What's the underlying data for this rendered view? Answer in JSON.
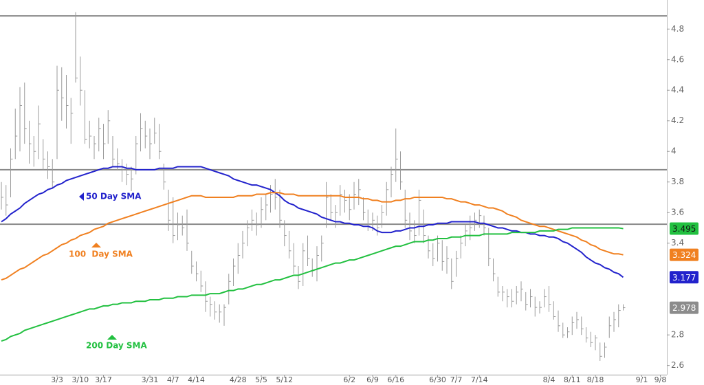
{
  "chart_data": {
    "type": "ohlc",
    "categories": [
      null,
      null,
      null,
      null,
      null,
      null,
      null,
      null,
      null,
      null,
      null,
      null,
      "3/3",
      null,
      null,
      null,
      null,
      "3/10",
      null,
      null,
      null,
      null,
      "3/17",
      null,
      null,
      null,
      null,
      null,
      null,
      null,
      null,
      null,
      "3/31",
      null,
      null,
      null,
      null,
      "4/7",
      null,
      null,
      null,
      null,
      "4/14",
      null,
      null,
      null,
      null,
      null,
      null,
      null,
      null,
      "4/28",
      null,
      null,
      null,
      null,
      "5/5",
      null,
      null,
      null,
      null,
      "5/12",
      null,
      null,
      null,
      null,
      null,
      null,
      null,
      null,
      null,
      null,
      null,
      null,
      null,
      "6/2",
      null,
      null,
      null,
      null,
      "6/9",
      null,
      null,
      null,
      null,
      "6/16",
      null,
      null,
      null,
      null,
      null,
      null,
      null,
      null,
      "6/30",
      null,
      null,
      null,
      "7/7",
      null,
      null,
      null,
      null,
      "7/14",
      null,
      null,
      null,
      null,
      null,
      null,
      null,
      null,
      null,
      null,
      null,
      null,
      null,
      null,
      "8/4",
      null,
      null,
      null,
      null,
      "8/11",
      null,
      null,
      null,
      null,
      "8/18",
      null,
      null,
      null,
      null,
      null,
      null,
      null,
      null,
      null,
      "9/1",
      null,
      null,
      null,
      "9/8"
    ],
    "ohlc": {
      "color": "#9a9a9a",
      "label_color": "#8c8c8c",
      "high": [
        3.8,
        3.78,
        4.02,
        4.28,
        4.42,
        4.45,
        4.2,
        4.1,
        4.3,
        4.08,
        4.0,
        3.95,
        4.56,
        4.55,
        4.5,
        4.35,
        4.91,
        4.62,
        4.4,
        4.2,
        4.1,
        4.22,
        4.18,
        4.27,
        4.1,
        4.02,
        3.95,
        3.92,
        3.9,
        4.1,
        4.25,
        4.2,
        4.15,
        4.22,
        4.18,
        3.92,
        3.75,
        3.7,
        3.6,
        3.58,
        3.62,
        3.35,
        3.28,
        3.22,
        3.15,
        3.05,
        3.02,
        3.0,
        3.0,
        3.2,
        3.3,
        3.4,
        3.48,
        3.55,
        3.62,
        3.6,
        3.7,
        3.72,
        3.78,
        3.82,
        3.75,
        3.55,
        3.48,
        3.4,
        3.25,
        3.4,
        3.45,
        3.3,
        3.38,
        3.45,
        3.8,
        3.72,
        3.65,
        3.78,
        3.75,
        3.72,
        3.8,
        3.82,
        3.7,
        3.62,
        3.6,
        3.58,
        3.65,
        3.8,
        3.9,
        4.15,
        4.0,
        3.75,
        3.6,
        3.55,
        3.75,
        3.62,
        3.45,
        3.4,
        3.45,
        3.42,
        3.38,
        3.3,
        3.35,
        3.45,
        3.52,
        3.58,
        3.6,
        3.62,
        3.58,
        3.5,
        3.3,
        3.18,
        3.12,
        3.1,
        3.1,
        3.12,
        3.15,
        3.08,
        3.1,
        3.05,
        3.02,
        3.1,
        3.12,
        3.02,
        2.96,
        2.88,
        2.85,
        2.92,
        2.95,
        2.92,
        2.85,
        2.82,
        2.8,
        2.75,
        2.75,
        2.92,
        2.95,
        3.0,
        3.0,
        null,
        null,
        null,
        null,
        null,
        null,
        null,
        null
      ],
      "low": [
        3.62,
        3.58,
        3.7,
        3.95,
        4.0,
        4.05,
        3.92,
        3.9,
        3.95,
        3.88,
        3.82,
        3.76,
        3.95,
        4.2,
        4.15,
        4.05,
        4.45,
        4.3,
        4.05,
        4.02,
        3.95,
        4.0,
        3.95,
        4.05,
        3.9,
        3.88,
        3.8,
        3.78,
        3.74,
        3.85,
        4.0,
        4.02,
        3.95,
        4.05,
        3.95,
        3.75,
        3.48,
        3.4,
        3.42,
        3.45,
        3.35,
        3.2,
        3.15,
        3.08,
        2.95,
        2.92,
        2.9,
        2.88,
        2.86,
        3.0,
        3.12,
        3.2,
        3.3,
        3.38,
        3.48,
        3.45,
        3.5,
        3.55,
        3.6,
        3.62,
        3.5,
        3.38,
        3.3,
        3.2,
        3.1,
        3.12,
        3.25,
        3.18,
        3.15,
        3.28,
        3.5,
        3.55,
        3.5,
        3.58,
        3.6,
        3.55,
        3.62,
        3.65,
        3.55,
        3.48,
        3.48,
        3.45,
        3.5,
        3.58,
        3.7,
        3.8,
        3.75,
        3.5,
        3.42,
        3.4,
        3.45,
        3.4,
        3.3,
        3.25,
        3.28,
        3.22,
        3.2,
        3.1,
        3.18,
        3.3,
        3.38,
        3.42,
        3.48,
        3.5,
        3.45,
        3.25,
        3.15,
        3.05,
        3.02,
        2.98,
        2.98,
        3.0,
        3.02,
        2.96,
        2.98,
        2.92,
        2.94,
        2.98,
        2.95,
        2.9,
        2.82,
        2.78,
        2.78,
        2.8,
        2.84,
        2.8,
        2.75,
        2.72,
        2.7,
        2.63,
        2.65,
        2.78,
        2.82,
        2.85,
        2.96,
        null,
        null,
        null,
        null,
        null,
        null,
        null,
        null
      ],
      "close": [
        3.7,
        3.65,
        3.95,
        4.1,
        4.3,
        4.15,
        4.05,
        4.0,
        4.18,
        3.95,
        3.9,
        3.8,
        4.4,
        4.35,
        4.3,
        4.25,
        4.48,
        4.4,
        4.08,
        4.1,
        4.05,
        4.15,
        4.05,
        4.2,
        3.95,
        3.92,
        3.88,
        3.85,
        3.82,
        4.05,
        4.15,
        4.1,
        4.05,
        4.12,
        4.0,
        3.8,
        3.55,
        3.45,
        3.52,
        3.5,
        3.4,
        3.25,
        3.2,
        3.12,
        3.02,
        3.0,
        2.95,
        2.95,
        2.98,
        3.15,
        3.25,
        3.32,
        3.4,
        3.5,
        3.55,
        3.52,
        3.62,
        3.65,
        3.72,
        3.7,
        3.55,
        3.45,
        3.35,
        3.25,
        3.15,
        3.35,
        3.3,
        3.22,
        3.32,
        3.4,
        3.7,
        3.6,
        3.6,
        3.72,
        3.68,
        3.62,
        3.72,
        3.75,
        3.6,
        3.52,
        3.55,
        3.5,
        3.6,
        3.75,
        3.85,
        3.95,
        3.8,
        3.55,
        3.48,
        3.45,
        3.68,
        3.45,
        3.35,
        3.3,
        3.4,
        3.28,
        3.3,
        3.15,
        3.3,
        3.4,
        3.48,
        3.5,
        3.55,
        3.58,
        3.5,
        3.3,
        3.2,
        3.08,
        3.08,
        3.05,
        3.02,
        3.08,
        3.1,
        3.0,
        3.05,
        2.98,
        2.98,
        3.05,
        3.0,
        2.92,
        2.86,
        2.8,
        2.82,
        2.88,
        2.9,
        2.84,
        2.78,
        2.75,
        2.78,
        2.66,
        2.72,
        2.86,
        2.9,
        2.96,
        2.978,
        null,
        null,
        null,
        null,
        null,
        null,
        null,
        null
      ]
    },
    "series": [
      {
        "name": "50 Day SMA",
        "color": "#2222cc",
        "values": [
          3.54,
          3.56,
          3.59,
          3.61,
          3.63,
          3.66,
          3.68,
          3.7,
          3.72,
          3.73,
          3.75,
          3.76,
          3.78,
          3.79,
          3.81,
          3.82,
          3.83,
          3.84,
          3.85,
          3.86,
          3.87,
          3.88,
          3.89,
          3.89,
          3.9,
          3.9,
          3.9,
          3.89,
          3.89,
          3.88,
          3.88,
          3.88,
          3.88,
          3.88,
          3.89,
          3.89,
          3.89,
          3.89,
          3.9,
          3.9,
          3.9,
          3.9,
          3.9,
          3.9,
          3.89,
          3.88,
          3.87,
          3.86,
          3.85,
          3.84,
          3.82,
          3.81,
          3.8,
          3.79,
          3.78,
          3.78,
          3.77,
          3.76,
          3.75,
          3.73,
          3.71,
          3.68,
          3.66,
          3.65,
          3.63,
          3.62,
          3.61,
          3.6,
          3.59,
          3.57,
          3.56,
          3.55,
          3.54,
          3.54,
          3.53,
          3.53,
          3.52,
          3.52,
          3.51,
          3.51,
          3.5,
          3.48,
          3.47,
          3.47,
          3.47,
          3.48,
          3.48,
          3.49,
          3.5,
          3.5,
          3.51,
          3.51,
          3.52,
          3.52,
          3.53,
          3.53,
          3.53,
          3.54,
          3.54,
          3.54,
          3.54,
          3.54,
          3.54,
          3.53,
          3.53,
          3.52,
          3.51,
          3.5,
          3.5,
          3.49,
          3.48,
          3.48,
          3.47,
          3.47,
          3.46,
          3.46,
          3.45,
          3.45,
          3.44,
          3.44,
          3.43,
          3.41,
          3.4,
          3.38,
          3.36,
          3.34,
          3.31,
          3.29,
          3.27,
          3.26,
          3.24,
          3.23,
          3.21,
          3.2,
          3.177,
          null,
          null,
          null,
          null,
          null,
          null,
          null,
          null
        ]
      },
      {
        "name": "100  Day SMA",
        "color": "#f08020",
        "values": [
          3.16,
          3.17,
          3.19,
          3.21,
          3.23,
          3.24,
          3.26,
          3.28,
          3.3,
          3.32,
          3.33,
          3.35,
          3.37,
          3.39,
          3.4,
          3.42,
          3.43,
          3.45,
          3.46,
          3.47,
          3.49,
          3.5,
          3.51,
          3.53,
          3.54,
          3.55,
          3.56,
          3.57,
          3.58,
          3.59,
          3.6,
          3.61,
          3.62,
          3.63,
          3.64,
          3.65,
          3.66,
          3.67,
          3.68,
          3.69,
          3.7,
          3.71,
          3.71,
          3.71,
          3.7,
          3.7,
          3.7,
          3.7,
          3.7,
          3.7,
          3.7,
          3.71,
          3.71,
          3.71,
          3.71,
          3.72,
          3.72,
          3.72,
          3.73,
          3.73,
          3.73,
          3.72,
          3.72,
          3.72,
          3.71,
          3.71,
          3.71,
          3.71,
          3.71,
          3.71,
          3.71,
          3.71,
          3.71,
          3.71,
          3.7,
          3.7,
          3.7,
          3.7,
          3.69,
          3.69,
          3.68,
          3.68,
          3.67,
          3.67,
          3.67,
          3.68,
          3.68,
          3.69,
          3.69,
          3.7,
          3.7,
          3.7,
          3.7,
          3.7,
          3.7,
          3.7,
          3.69,
          3.69,
          3.68,
          3.67,
          3.67,
          3.66,
          3.65,
          3.65,
          3.64,
          3.63,
          3.63,
          3.62,
          3.61,
          3.59,
          3.58,
          3.57,
          3.55,
          3.54,
          3.53,
          3.52,
          3.51,
          3.51,
          3.5,
          3.49,
          3.48,
          3.47,
          3.46,
          3.45,
          3.44,
          3.42,
          3.41,
          3.39,
          3.38,
          3.36,
          3.35,
          3.34,
          3.33,
          3.33,
          3.324,
          null,
          null,
          null,
          null,
          null,
          null,
          null,
          null
        ]
      },
      {
        "name": "200 Day SMA",
        "color": "#22c040",
        "values": [
          2.76,
          2.77,
          2.79,
          2.8,
          2.81,
          2.83,
          2.84,
          2.85,
          2.86,
          2.87,
          2.88,
          2.89,
          2.9,
          2.91,
          2.92,
          2.93,
          2.94,
          2.95,
          2.96,
          2.97,
          2.97,
          2.98,
          2.99,
          2.99,
          3.0,
          3.0,
          3.01,
          3.01,
          3.01,
          3.02,
          3.02,
          3.02,
          3.03,
          3.03,
          3.03,
          3.04,
          3.04,
          3.04,
          3.05,
          3.05,
          3.05,
          3.06,
          3.06,
          3.06,
          3.06,
          3.07,
          3.07,
          3.07,
          3.08,
          3.09,
          3.09,
          3.1,
          3.1,
          3.11,
          3.12,
          3.13,
          3.13,
          3.14,
          3.15,
          3.16,
          3.16,
          3.17,
          3.18,
          3.19,
          3.19,
          3.2,
          3.21,
          3.22,
          3.23,
          3.24,
          3.25,
          3.26,
          3.27,
          3.27,
          3.28,
          3.29,
          3.29,
          3.3,
          3.31,
          3.32,
          3.33,
          3.34,
          3.35,
          3.36,
          3.37,
          3.38,
          3.38,
          3.39,
          3.4,
          3.41,
          3.41,
          3.41,
          3.42,
          3.42,
          3.43,
          3.43,
          3.43,
          3.44,
          3.44,
          3.44,
          3.45,
          3.45,
          3.45,
          3.45,
          3.46,
          3.46,
          3.46,
          3.46,
          3.46,
          3.46,
          3.47,
          3.47,
          3.47,
          3.47,
          3.47,
          3.47,
          3.48,
          3.48,
          3.48,
          3.48,
          3.49,
          3.49,
          3.49,
          3.5,
          3.5,
          3.5,
          3.5,
          3.5,
          3.5,
          3.5,
          3.5,
          3.5,
          3.5,
          3.5,
          3.495,
          null,
          null,
          null,
          null,
          null,
          null,
          null,
          null
        ]
      }
    ],
    "hlines": [
      4.886,
      3.88,
      3.524
    ],
    "ylim": [
      2.54,
      4.99
    ],
    "yticks": [
      2.6,
      2.8,
      3.4,
      3.6,
      3.8,
      4,
      4.2,
      4.4,
      4.6,
      4.8
    ]
  }
}
